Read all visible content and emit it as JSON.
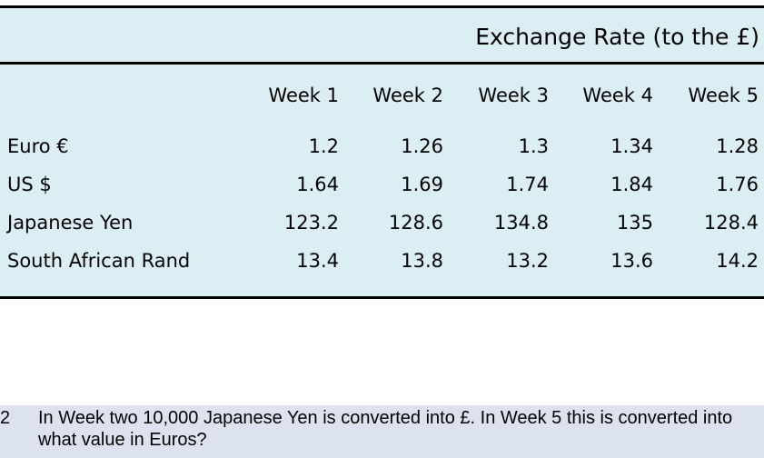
{
  "table": {
    "title": "Exchange Rate (to the £)",
    "columns": [
      "Week 1",
      "Week 2",
      "Week 3",
      "Week 4",
      "Week 5"
    ],
    "rows": [
      {
        "label": "Euro €",
        "values": [
          "1.2",
          "1.26",
          "1.3",
          "1.34",
          "1.28"
        ]
      },
      {
        "label": "US $",
        "values": [
          "1.64",
          "1.69",
          "1.74",
          "1.84",
          "1.76"
        ]
      },
      {
        "label": "Japanese Yen",
        "values": [
          "123.2",
          "128.6",
          "134.8",
          "135",
          "128.4"
        ]
      },
      {
        "label": "South African Rand",
        "values": [
          "13.4",
          "13.8",
          "13.2",
          "13.6",
          "14.2"
        ]
      }
    ],
    "colors": {
      "background": "#dbeef4",
      "rule": "#000000"
    }
  },
  "question": {
    "number": "2",
    "text": "In Week two 10,000 Japanese Yen is converted into £. In Week 5 this is converted into what value in Euros?",
    "background": "#dde3ee"
  }
}
